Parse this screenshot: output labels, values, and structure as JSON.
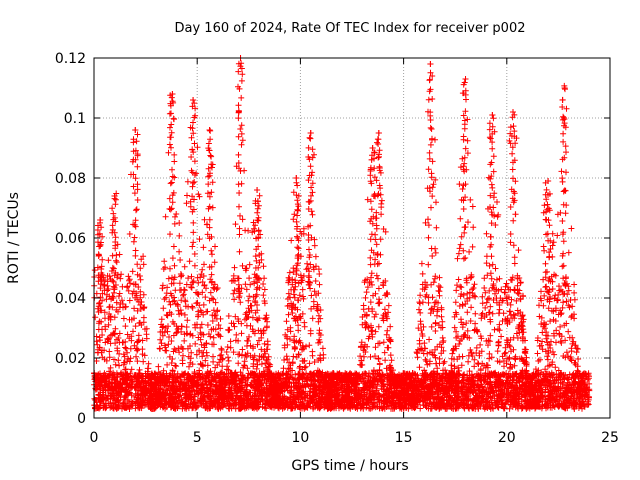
{
  "chart_data": {
    "type": "scatter",
    "title": "Day 160 of 2024, Rate Of TEC Index for receiver p002",
    "xlabel": "GPS time / hours",
    "ylabel": "ROTI / TECUs",
    "xlim": [
      0,
      25
    ],
    "ylim": [
      0,
      0.12
    ],
    "x_ticks": [
      "0",
      "5",
      "10",
      "15",
      "20",
      "25"
    ],
    "y_ticks": [
      "0",
      "0.02",
      "0.04",
      "0.06",
      "0.08",
      "0.1",
      "0.12"
    ],
    "grid": true,
    "marker": "+",
    "series": [
      {
        "color": "#ff0000",
        "x_range": [
          0,
          24
        ],
        "peaks": [
          {
            "x": 0.3,
            "y": 0.066
          },
          {
            "x": 1.0,
            "y": 0.074
          },
          {
            "x": 2.0,
            "y": 0.096
          },
          {
            "x": 3.8,
            "y": 0.108
          },
          {
            "x": 4.8,
            "y": 0.106
          },
          {
            "x": 5.6,
            "y": 0.096
          },
          {
            "x": 7.1,
            "y": 0.12
          },
          {
            "x": 7.9,
            "y": 0.076
          },
          {
            "x": 9.8,
            "y": 0.08
          },
          {
            "x": 10.5,
            "y": 0.095
          },
          {
            "x": 13.5,
            "y": 0.09
          },
          {
            "x": 13.8,
            "y": 0.095
          },
          {
            "x": 16.3,
            "y": 0.118
          },
          {
            "x": 18.0,
            "y": 0.113
          },
          {
            "x": 19.3,
            "y": 0.101
          },
          {
            "x": 20.3,
            "y": 0.102
          },
          {
            "x": 22.0,
            "y": 0.079
          },
          {
            "x": 22.8,
            "y": 0.11
          }
        ]
      }
    ]
  }
}
